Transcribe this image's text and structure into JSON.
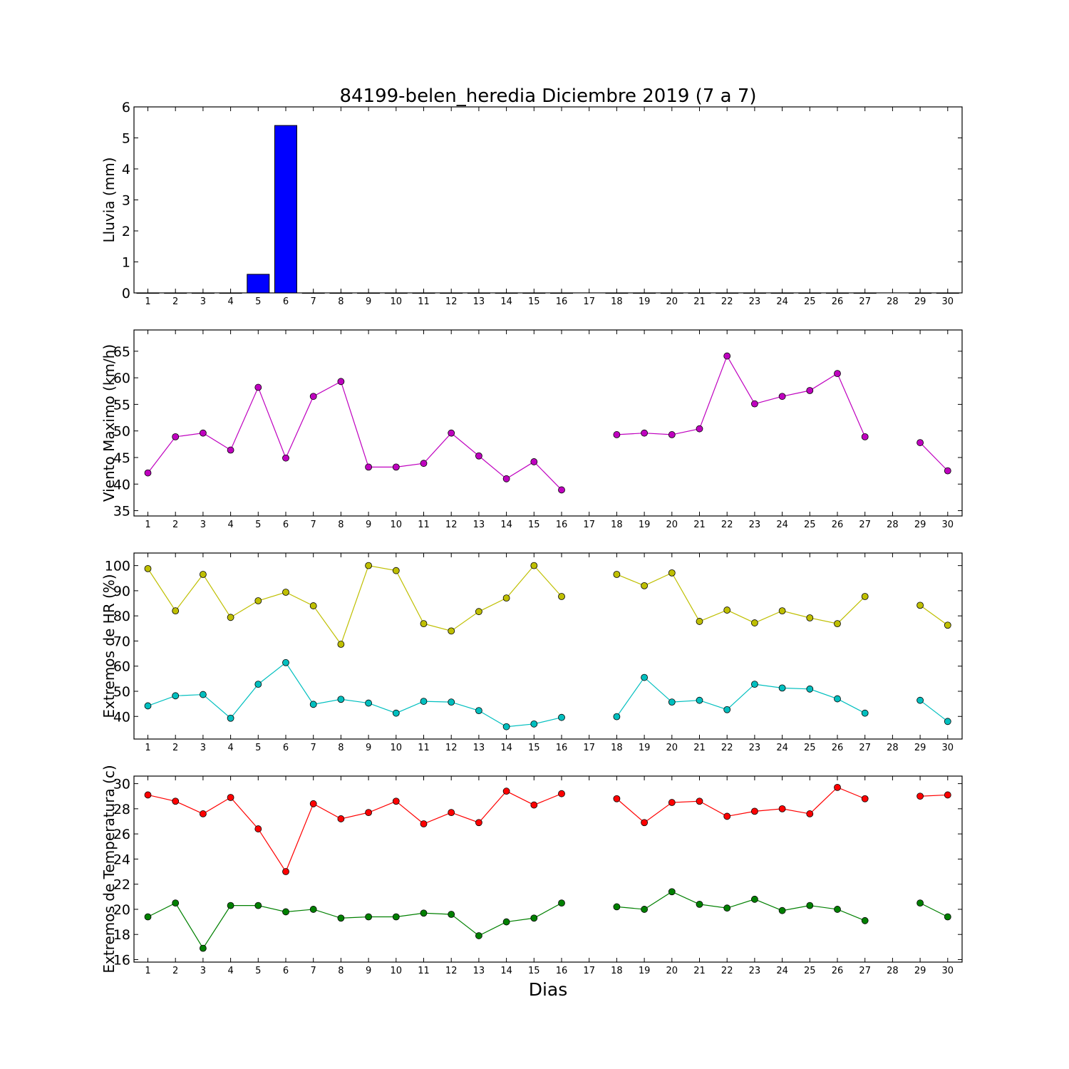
{
  "chart_data": {
    "title": "84199-belen_heredia Diciembre 2019  (7 a 7)",
    "xlabel": "Dias",
    "x_ticks": [
      "1",
      "2",
      "3",
      "4",
      "5",
      "6",
      "7",
      "8",
      "9",
      "10",
      "11",
      "12",
      "13",
      "14",
      "15",
      "16",
      "17",
      "18",
      "19",
      "20",
      "21",
      "22",
      "23",
      "24",
      "25",
      "26",
      "27",
      "28",
      "29",
      "30"
    ],
    "panels": [
      {
        "type": "bar",
        "ylabel": "Lluvia (mm)",
        "ylim": [
          0,
          6
        ],
        "yticks": [
          0,
          1,
          2,
          3,
          4,
          5,
          6
        ],
        "series": [
          {
            "color": "#0000ff",
            "values": [
              0,
              0,
              0,
              0,
              0.6,
              5.4,
              0,
              0,
              0,
              0,
              0,
              0,
              0,
              0,
              0,
              0,
              null,
              0,
              0,
              0,
              0,
              0,
              0,
              0,
              0,
              0,
              0,
              null,
              0,
              0
            ]
          }
        ]
      },
      {
        "type": "line",
        "ylabel": "Viento Maximo (km/h)",
        "ylim": [
          34,
          69
        ],
        "yticks": [
          35,
          40,
          45,
          50,
          55,
          60,
          65
        ],
        "series": [
          {
            "color": "#bf00bf",
            "values": [
              42.1,
              48.9,
              49.6,
              46.4,
              58.2,
              44.9,
              56.5,
              59.3,
              43.2,
              43.2,
              43.9,
              49.6,
              45.3,
              41.0,
              44.2,
              38.9,
              null,
              49.3,
              49.6,
              49.3,
              50.4,
              64.1,
              55.1,
              56.5,
              57.6,
              60.8,
              48.9,
              null,
              47.8,
              42.5
            ]
          }
        ]
      },
      {
        "type": "line",
        "ylabel": "Extremos de HR (%)",
        "ylim": [
          31,
          105
        ],
        "yticks": [
          40,
          50,
          60,
          70,
          80,
          90,
          100
        ],
        "series": [
          {
            "color": "#bfbf00",
            "values": [
              98.8,
              82.0,
              96.5,
              79.4,
              86.0,
              89.4,
              84.0,
              68.7,
              100,
              98.0,
              76.9,
              74.0,
              81.7,
              87.1,
              100,
              87.7,
              null,
              96.5,
              92.0,
              97.1,
              77.8,
              82.3,
              77.2,
              82.0,
              79.2,
              76.9,
              87.7,
              null,
              84.2,
              76.3
            ]
          },
          {
            "color": "#00bfbf",
            "values": [
              44.2,
              48.2,
              48.7,
              39.3,
              52.8,
              61.4,
              44.8,
              46.8,
              45.3,
              41.3,
              46.0,
              45.7,
              42.3,
              35.9,
              37.0,
              39.6,
              null,
              39.9,
              55.5,
              45.7,
              46.4,
              42.7,
              52.8,
              51.3,
              50.9,
              47.0,
              41.3,
              null,
              46.4,
              38.0
            ]
          }
        ]
      },
      {
        "type": "line",
        "ylabel": "Extremos de Temperatura (c)",
        "ylim": [
          15.8,
          30.6
        ],
        "yticks": [
          16,
          18,
          20,
          22,
          24,
          26,
          28,
          30
        ],
        "series": [
          {
            "color": "#ff0000",
            "values": [
              29.1,
              28.6,
              27.6,
              28.9,
              26.4,
              23.0,
              28.4,
              27.2,
              27.7,
              28.6,
              26.8,
              27.7,
              26.9,
              29.4,
              28.3,
              29.2,
              null,
              28.8,
              26.9,
              28.5,
              28.6,
              27.4,
              27.8,
              28.0,
              27.6,
              29.7,
              28.8,
              null,
              29.0,
              29.1
            ]
          },
          {
            "color": "#008000",
            "values": [
              19.4,
              20.5,
              16.9,
              20.3,
              20.3,
              19.8,
              20.0,
              19.3,
              19.4,
              19.4,
              19.7,
              19.6,
              17.9,
              19.0,
              19.3,
              20.5,
              null,
              20.2,
              20.0,
              21.4,
              20.4,
              20.1,
              20.8,
              19.9,
              20.3,
              20.0,
              19.1,
              null,
              20.5,
              19.4
            ]
          }
        ]
      }
    ]
  }
}
